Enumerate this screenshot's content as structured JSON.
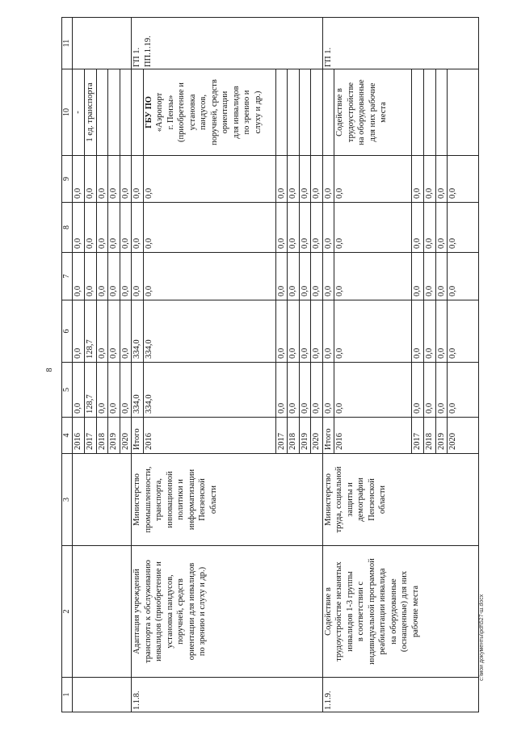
{
  "page_number": "8",
  "footer": "с:\\мои документы\\pdf\\527-ш.docx",
  "header": [
    "1",
    "2",
    "3",
    "4",
    "5",
    "6",
    "7",
    "8",
    "9",
    "10",
    "11"
  ],
  "sections": [
    {
      "number": "",
      "name": "",
      "executor": "",
      "code": "",
      "rows": [
        {
          "year": "2016",
          "values": [
            "0,0",
            "0,0",
            "0,0",
            "0,0",
            "0,0"
          ],
          "result": "-"
        },
        {
          "year": "2017",
          "values": [
            "128,7",
            "128,7",
            "0,0",
            "0,0",
            "0,0"
          ],
          "result": "1 ед. транспорта"
        },
        {
          "year": "2018",
          "values": [
            "0,0",
            "0,0",
            "0,0",
            "0,0",
            "0,0"
          ],
          "result": ""
        },
        {
          "year": "2019",
          "values": [
            "0,0",
            "0,0",
            "0,0",
            "0,0",
            "0,0"
          ],
          "result": ""
        },
        {
          "year": "2020",
          "values": [
            "0,0",
            "0,0",
            "0,0",
            "0,0",
            "0,0"
          ],
          "result": ""
        }
      ]
    },
    {
      "number": "1.1.8.",
      "name": "Адаптация учреждений\nтранспорта к обслуживанию\nинвалидов (приобретение и\nустановка пандусов,\nпоручней, средств\nориентации для инвалидов\nпо зрению и слуху и др.)",
      "executor": "Министерство\nпромышленности,\nтранспорта,\nинновационной\nполитики и\nинформатизации\nПензенской\nобласти",
      "code": "ГП 1.\nПП.1.19.",
      "rows": [
        {
          "year": "Итого",
          "values": [
            "334,0",
            "334,0",
            "0,0",
            "0,0",
            "0,0"
          ],
          "result": ""
        },
        {
          "year": "2016",
          "values": [
            "334,0",
            "334,0",
            "0,0",
            "0,0",
            "0,0"
          ],
          "result": "ГБУ ПО\n«Аэропорт\nг. Пензы»\n(приобретение и\nустановка\nпандусов,\nпоручней, средств\nориентации\nдля инвалидов\nпо зрению и\nслуху и др.)"
        },
        {
          "year": "2017",
          "values": [
            "0,0",
            "0,0",
            "0,0",
            "0,0",
            "0,0"
          ],
          "result": ""
        },
        {
          "year": "2018",
          "values": [
            "0,0",
            "0,0",
            "0,0",
            "0,0",
            "0,0"
          ],
          "result": ""
        },
        {
          "year": "2019",
          "values": [
            "0,0",
            "0,0",
            "0,0",
            "0,0",
            "0,0"
          ],
          "result": ""
        },
        {
          "year": "2020",
          "values": [
            "0,0",
            "0,0",
            "0,0",
            "0,0",
            "0,0"
          ],
          "result": ""
        }
      ]
    },
    {
      "number": "1.1.9.",
      "name": "Содействие в\nтрудоустройстве незанятых\nинвалидов 1-3 группы\nв соответствии с\nиндивидуальной программой\nреабилитации инвалида\nна оборудованные\n(оснащенные) для них\nрабочие места",
      "executor": "Министерство\nтруда, социальной\nзащиты и\nдемографии\nПензенской\nобласти",
      "code": "ГП 1.",
      "rows": [
        {
          "year": "Итого",
          "values": [
            "0,0",
            "0,0",
            "0,0",
            "0,0",
            "0,0"
          ],
          "result": ""
        },
        {
          "year": "2016",
          "values": [
            "0,0",
            "0,0",
            "0,0",
            "0,0",
            "0,0"
          ],
          "result": "Содействие в\nтрудоустройстве\nна оборудованные\nдля них рабочие\nместа"
        },
        {
          "year": "2017",
          "values": [
            "0,0",
            "0,0",
            "0,0",
            "0,0",
            "0,0"
          ],
          "result": ""
        },
        {
          "year": "2018",
          "values": [
            "0,0",
            "0,0",
            "0,0",
            "0,0",
            "0,0"
          ],
          "result": ""
        },
        {
          "year": "2019",
          "values": [
            "0,0",
            "0,0",
            "0,0",
            "0,0",
            "0,0"
          ],
          "result": ""
        },
        {
          "year": "2020",
          "values": [
            "0,0",
            "0,0",
            "0,0",
            "0,0",
            "0,0"
          ],
          "result": ""
        }
      ]
    }
  ]
}
